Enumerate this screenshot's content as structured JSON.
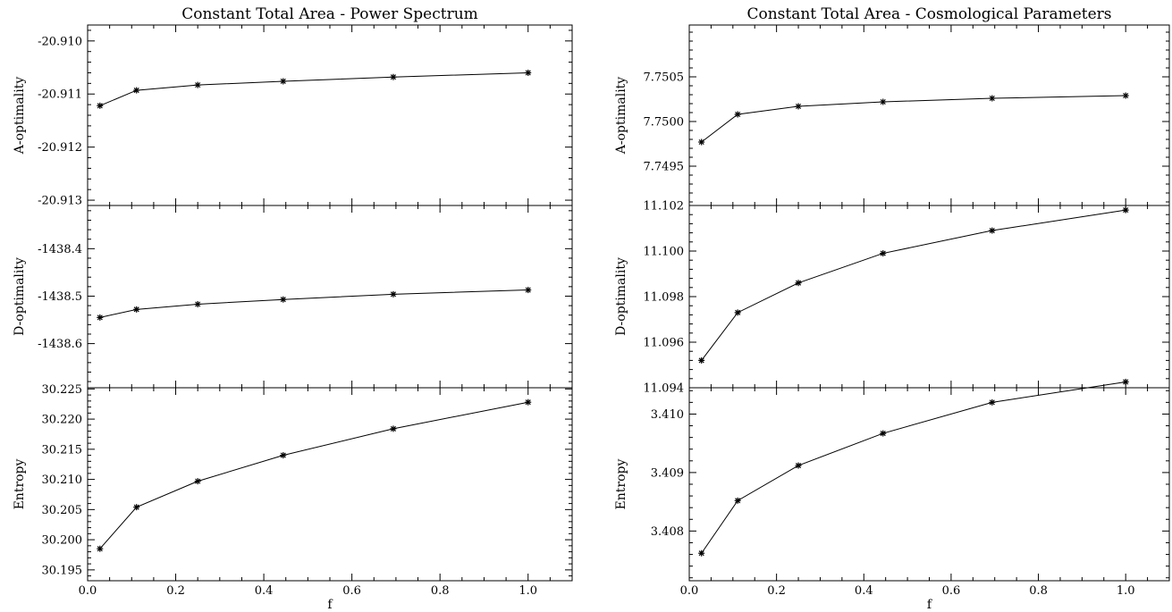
{
  "chart_data": [
    {
      "type": "line",
      "title": "Constant Total Area - Power Spectrum",
      "xlabel": "f",
      "xlim": [
        0.0,
        1.1
      ],
      "xticks": [
        "0.0",
        "0.2",
        "0.4",
        "0.6",
        "0.8",
        "1.0"
      ],
      "panels": [
        {
          "ylabel": "A-optimality",
          "ylim": [
            -20.9131,
            -20.9097
          ],
          "yticks": [
            "-20.910",
            "-20.911",
            "-20.912",
            "-20.913"
          ],
          "x": [
            0.028,
            0.111,
            0.25,
            0.444,
            0.694,
            1.0
          ],
          "y": [
            -20.91122,
            -20.91093,
            -20.91083,
            -20.91076,
            -20.91068,
            -20.9106
          ]
        },
        {
          "ylabel": "D-optimality",
          "ylim": [
            -1438.693,
            -1438.309
          ],
          "yticks": [
            "-1438.4",
            "-1438.5",
            "-1438.6"
          ],
          "x": [
            0.028,
            0.111,
            0.25,
            0.444,
            0.694,
            1.0
          ],
          "y": [
            -1438.545,
            -1438.528,
            -1438.517,
            -1438.507,
            -1438.496,
            -1438.487
          ]
        },
        {
          "ylabel": "Entropy",
          "ylim": [
            30.1932,
            30.2252
          ],
          "yticks": [
            "30.225",
            "30.220",
            "30.215",
            "30.210",
            "30.205",
            "30.200",
            "30.195"
          ],
          "x": [
            0.028,
            0.111,
            0.25,
            0.444,
            0.694,
            1.0
          ],
          "y": [
            30.1985,
            30.2054,
            30.2097,
            30.214,
            30.2184,
            30.2228
          ]
        }
      ]
    },
    {
      "type": "line",
      "title": "Constant Total Area - Cosmological Parameters",
      "xlabel": "f",
      "xlim": [
        0.0,
        1.1
      ],
      "xticks": [
        "0.0",
        "0.2",
        "0.4",
        "0.6",
        "0.8",
        "1.0"
      ],
      "panels": [
        {
          "ylabel": "A-optimality",
          "ylim": [
            7.74906,
            7.75108
          ],
          "yticks": [
            "7.7505",
            "7.7500",
            "7.7495"
          ],
          "x": [
            0.028,
            0.111,
            0.25,
            0.444,
            0.694,
            1.0
          ],
          "y": [
            7.74977,
            7.75008,
            7.75017,
            7.75022,
            7.75026,
            7.75029
          ]
        },
        {
          "ylabel": "D-optimality",
          "ylim": [
            11.094,
            11.102
          ],
          "yticks": [
            "11.102",
            "11.100",
            "11.098",
            "11.096",
            "11.094"
          ],
          "x": [
            0.028,
            0.111,
            0.25,
            0.444,
            0.694,
            1.0
          ],
          "y": [
            11.0952,
            11.0973,
            11.0986,
            11.0999,
            11.1009,
            11.1018
          ]
        },
        {
          "ylabel": "Entropy",
          "ylim": [
            3.40715,
            3.41045
          ],
          "yticks": [
            "3.410",
            "3.409",
            "3.408"
          ],
          "x": [
            0.028,
            0.111,
            0.25,
            0.444,
            0.694,
            1.0
          ],
          "y": [
            3.40762,
            3.40852,
            3.40912,
            3.40967,
            3.4102,
            3.41055
          ]
        }
      ]
    }
  ]
}
